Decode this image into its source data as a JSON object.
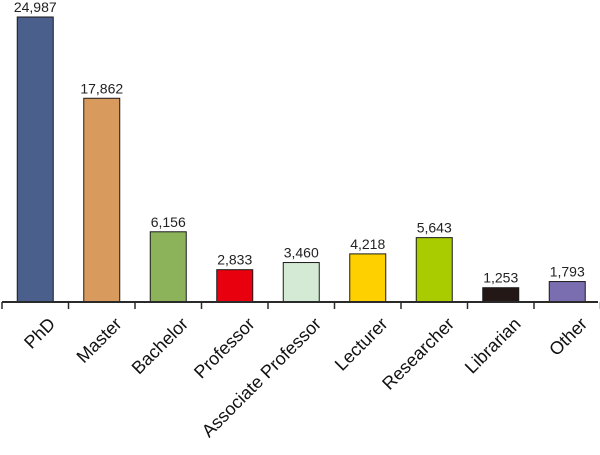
{
  "chart_data": {
    "type": "bar",
    "categories": [
      "PhD",
      "Master",
      "Bachelor",
      "Professor",
      "Associate Professor",
      "Lecturer",
      "Researcher",
      "Librarian",
      "Other"
    ],
    "values": [
      24987,
      17862,
      6156,
      2833,
      3460,
      4218,
      5643,
      1253,
      1793
    ],
    "value_labels": [
      "24,987",
      "17,862",
      "6,156",
      "2,833",
      "3,460",
      "4,218",
      "5,643",
      "1,253",
      "1,793"
    ],
    "colors": [
      "#4a5f8c",
      "#d99a5e",
      "#8cb35a",
      "#e8000e",
      "#d5ead5",
      "#ffd000",
      "#a8cc00",
      "#231815",
      "#7a6eb0"
    ],
    "title": "",
    "xlabel": "",
    "ylabel": "",
    "ylim": [
      0,
      25000
    ],
    "grid": false,
    "legend": "none"
  }
}
